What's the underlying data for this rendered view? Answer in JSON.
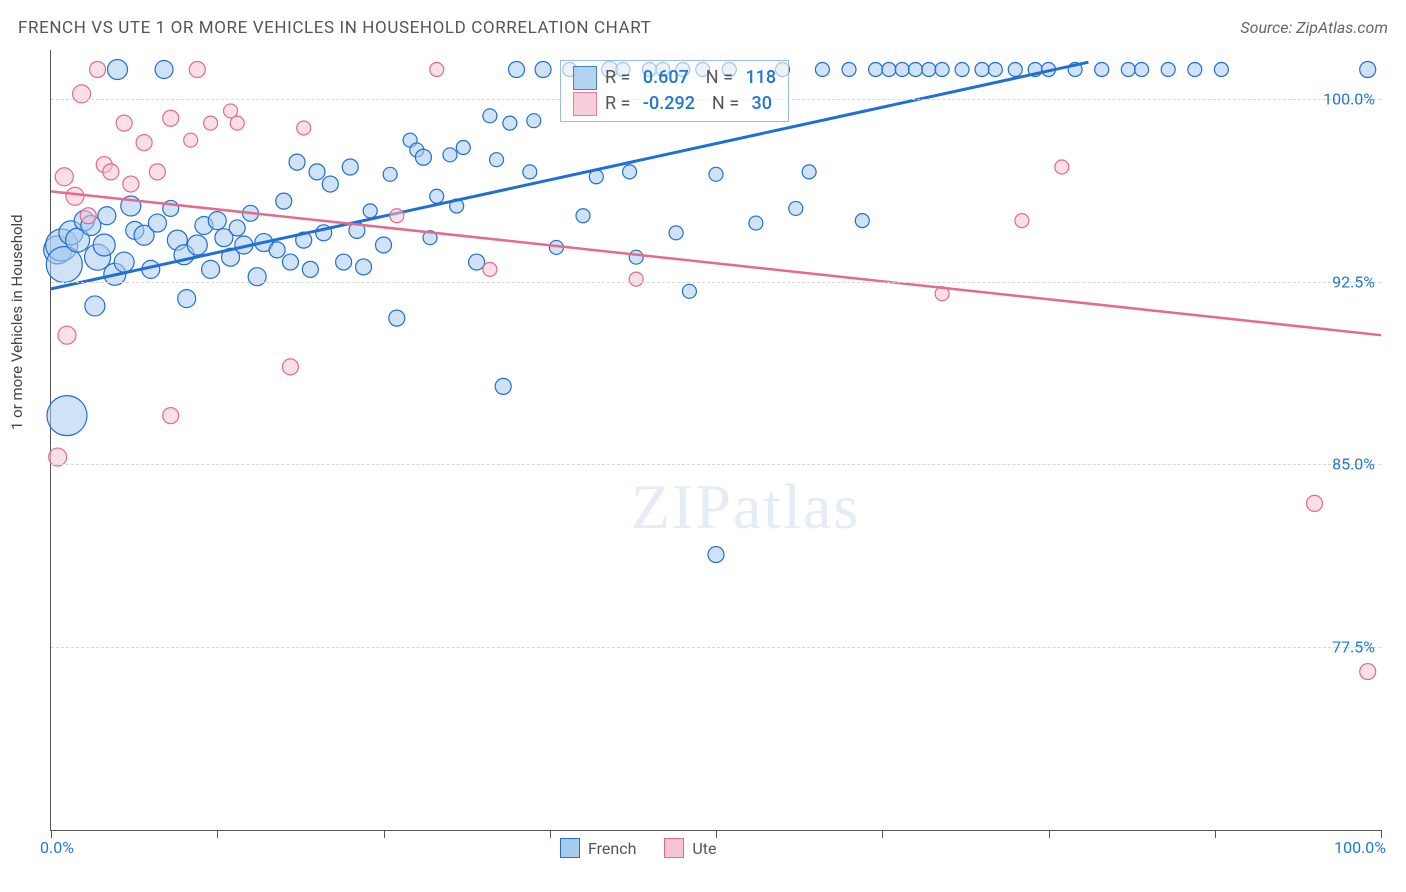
{
  "header": {
    "title": "FRENCH VS UTE 1 OR MORE VEHICLES IN HOUSEHOLD CORRELATION CHART",
    "source": "Source: ZipAtlas.com"
  },
  "chart": {
    "type": "scatter",
    "ylabel": "1 or more Vehicles in Household",
    "xlim": [
      0,
      100
    ],
    "ylim": [
      70,
      102
    ],
    "x_tick_positions": [
      0,
      12.5,
      25,
      37.5,
      50,
      62.5,
      75,
      87.5,
      100
    ],
    "x_start_label": "0.0%",
    "x_end_label": "100.0%",
    "y_ticks": [
      {
        "value": 100.0,
        "label": "100.0%"
      },
      {
        "value": 92.5,
        "label": "92.5%"
      },
      {
        "value": 85.0,
        "label": "85.0%"
      },
      {
        "value": 77.5,
        "label": "77.5%"
      }
    ],
    "background_color": "#ffffff",
    "grid_color": "#d8d8d8",
    "axis_color": "#555555",
    "tick_label_color": "#1f77d4",
    "watermark_text": "ZIPatlas",
    "series": [
      {
        "name": "French",
        "stroke": "#1f6fd4",
        "fill": "#a9cbee",
        "fill_opacity": 0.55,
        "marker_border_width": 1.2,
        "R": "0.607",
        "N": "118",
        "trend": {
          "x1": 0,
          "y1": 92.2,
          "x2": 78,
          "y2": 101.5,
          "color": "#1f6fd4",
          "width": 3
        },
        "points": [
          {
            "x": 0.5,
            "y": 93.8,
            "r": 14
          },
          {
            "x": 0.8,
            "y": 94.0,
            "r": 16
          },
          {
            "x": 1.0,
            "y": 93.2,
            "r": 18
          },
          {
            "x": 1.2,
            "y": 87.0,
            "r": 20
          },
          {
            "x": 1.5,
            "y": 94.5,
            "r": 12
          },
          {
            "x": 2.0,
            "y": 94.2,
            "r": 12
          },
          {
            "x": 2.5,
            "y": 95.0,
            "r": 10
          },
          {
            "x": 3.0,
            "y": 94.8,
            "r": 10
          },
          {
            "x": 3.3,
            "y": 91.5,
            "r": 10
          },
          {
            "x": 3.5,
            "y": 93.5,
            "r": 13
          },
          {
            "x": 4.0,
            "y": 94.0,
            "r": 11
          },
          {
            "x": 4.2,
            "y": 95.2,
            "r": 9
          },
          {
            "x": 4.8,
            "y": 92.8,
            "r": 11
          },
          {
            "x": 5.0,
            "y": 101.2,
            "r": 10
          },
          {
            "x": 5.5,
            "y": 93.3,
            "r": 10
          },
          {
            "x": 6.0,
            "y": 95.6,
            "r": 10
          },
          {
            "x": 6.3,
            "y": 94.6,
            "r": 9
          },
          {
            "x": 7.0,
            "y": 94.4,
            "r": 10
          },
          {
            "x": 7.5,
            "y": 93.0,
            "r": 9
          },
          {
            "x": 8.0,
            "y": 94.9,
            "r": 9
          },
          {
            "x": 8.5,
            "y": 101.2,
            "r": 9
          },
          {
            "x": 9.0,
            "y": 95.5,
            "r": 8
          },
          {
            "x": 9.5,
            "y": 94.2,
            "r": 10
          },
          {
            "x": 10.0,
            "y": 93.6,
            "r": 10
          },
          {
            "x": 10.2,
            "y": 91.8,
            "r": 9
          },
          {
            "x": 11.0,
            "y": 94.0,
            "r": 10
          },
          {
            "x": 11.5,
            "y": 94.8,
            "r": 9
          },
          {
            "x": 12.0,
            "y": 93.0,
            "r": 9
          },
          {
            "x": 12.5,
            "y": 95.0,
            "r": 9
          },
          {
            "x": 13.0,
            "y": 94.3,
            "r": 9
          },
          {
            "x": 13.5,
            "y": 93.5,
            "r": 9
          },
          {
            "x": 14.0,
            "y": 94.7,
            "r": 8
          },
          {
            "x": 14.5,
            "y": 94.0,
            "r": 9
          },
          {
            "x": 15.0,
            "y": 95.3,
            "r": 8
          },
          {
            "x": 15.5,
            "y": 92.7,
            "r": 9
          },
          {
            "x": 16.0,
            "y": 94.1,
            "r": 9
          },
          {
            "x": 17.0,
            "y": 93.8,
            "r": 8
          },
          {
            "x": 17.5,
            "y": 95.8,
            "r": 8
          },
          {
            "x": 18.0,
            "y": 93.3,
            "r": 8
          },
          {
            "x": 18.5,
            "y": 97.4,
            "r": 8
          },
          {
            "x": 19.0,
            "y": 94.2,
            "r": 8
          },
          {
            "x": 19.5,
            "y": 93.0,
            "r": 8
          },
          {
            "x": 20.0,
            "y": 97.0,
            "r": 8
          },
          {
            "x": 20.5,
            "y": 94.5,
            "r": 8
          },
          {
            "x": 21.0,
            "y": 96.5,
            "r": 8
          },
          {
            "x": 22.0,
            "y": 93.3,
            "r": 8
          },
          {
            "x": 22.5,
            "y": 97.2,
            "r": 8
          },
          {
            "x": 23.0,
            "y": 94.6,
            "r": 8
          },
          {
            "x": 23.5,
            "y": 93.1,
            "r": 8
          },
          {
            "x": 24.0,
            "y": 95.4,
            "r": 7
          },
          {
            "x": 25.0,
            "y": 94.0,
            "r": 8
          },
          {
            "x": 25.5,
            "y": 96.9,
            "r": 7
          },
          {
            "x": 26.0,
            "y": 91.0,
            "r": 8
          },
          {
            "x": 27.0,
            "y": 98.3,
            "r": 7
          },
          {
            "x": 27.5,
            "y": 97.9,
            "r": 7
          },
          {
            "x": 28.0,
            "y": 97.6,
            "r": 8
          },
          {
            "x": 28.5,
            "y": 94.3,
            "r": 7
          },
          {
            "x": 29.0,
            "y": 96.0,
            "r": 7
          },
          {
            "x": 30.0,
            "y": 97.7,
            "r": 7
          },
          {
            "x": 30.5,
            "y": 95.6,
            "r": 7
          },
          {
            "x": 31.0,
            "y": 98.0,
            "r": 7
          },
          {
            "x": 32.0,
            "y": 93.3,
            "r": 8
          },
          {
            "x": 33.0,
            "y": 99.3,
            "r": 7
          },
          {
            "x": 33.5,
            "y": 97.5,
            "r": 7
          },
          {
            "x": 34.0,
            "y": 88.2,
            "r": 8
          },
          {
            "x": 34.5,
            "y": 99.0,
            "r": 7
          },
          {
            "x": 35.0,
            "y": 101.2,
            "r": 8
          },
          {
            "x": 36.0,
            "y": 97.0,
            "r": 7
          },
          {
            "x": 36.3,
            "y": 99.1,
            "r": 7
          },
          {
            "x": 37.0,
            "y": 101.2,
            "r": 8
          },
          {
            "x": 38.0,
            "y": 93.9,
            "r": 7
          },
          {
            "x": 39.0,
            "y": 101.2,
            "r": 7
          },
          {
            "x": 40.0,
            "y": 95.2,
            "r": 7
          },
          {
            "x": 41.0,
            "y": 96.8,
            "r": 7
          },
          {
            "x": 42.0,
            "y": 101.2,
            "r": 8
          },
          {
            "x": 43.0,
            "y": 101.2,
            "r": 7
          },
          {
            "x": 43.5,
            "y": 97.0,
            "r": 7
          },
          {
            "x": 44.0,
            "y": 93.5,
            "r": 7
          },
          {
            "x": 45.0,
            "y": 101.2,
            "r": 7
          },
          {
            "x": 46.0,
            "y": 101.2,
            "r": 7
          },
          {
            "x": 47.0,
            "y": 94.5,
            "r": 7
          },
          {
            "x": 47.5,
            "y": 101.2,
            "r": 7
          },
          {
            "x": 48.0,
            "y": 92.1,
            "r": 7
          },
          {
            "x": 49.0,
            "y": 101.2,
            "r": 7
          },
          {
            "x": 50.0,
            "y": 96.9,
            "r": 7
          },
          {
            "x": 50.0,
            "y": 81.3,
            "r": 8
          },
          {
            "x": 51.0,
            "y": 101.2,
            "r": 7
          },
          {
            "x": 53.0,
            "y": 94.9,
            "r": 7
          },
          {
            "x": 55.0,
            "y": 101.2,
            "r": 7
          },
          {
            "x": 56.0,
            "y": 95.5,
            "r": 7
          },
          {
            "x": 57.0,
            "y": 97.0,
            "r": 7
          },
          {
            "x": 58.0,
            "y": 101.2,
            "r": 7
          },
          {
            "x": 60.0,
            "y": 101.2,
            "r": 7
          },
          {
            "x": 61.0,
            "y": 95.0,
            "r": 7
          },
          {
            "x": 62.0,
            "y": 101.2,
            "r": 7
          },
          {
            "x": 63.0,
            "y": 101.2,
            "r": 7
          },
          {
            "x": 64.0,
            "y": 101.2,
            "r": 7
          },
          {
            "x": 65.0,
            "y": 101.2,
            "r": 7
          },
          {
            "x": 66.0,
            "y": 101.2,
            "r": 7
          },
          {
            "x": 67.0,
            "y": 101.2,
            "r": 7
          },
          {
            "x": 68.5,
            "y": 101.2,
            "r": 7
          },
          {
            "x": 70.0,
            "y": 101.2,
            "r": 7
          },
          {
            "x": 71.0,
            "y": 101.2,
            "r": 7
          },
          {
            "x": 72.5,
            "y": 101.2,
            "r": 7
          },
          {
            "x": 74.0,
            "y": 101.2,
            "r": 7
          },
          {
            "x": 75.0,
            "y": 101.2,
            "r": 7
          },
          {
            "x": 77.0,
            "y": 101.2,
            "r": 7
          },
          {
            "x": 79.0,
            "y": 101.2,
            "r": 7
          },
          {
            "x": 81.0,
            "y": 101.2,
            "r": 7
          },
          {
            "x": 82.0,
            "y": 101.2,
            "r": 7
          },
          {
            "x": 84.0,
            "y": 101.2,
            "r": 7
          },
          {
            "x": 86.0,
            "y": 101.2,
            "r": 7
          },
          {
            "x": 88.0,
            "y": 101.2,
            "r": 7
          },
          {
            "x": 99.0,
            "y": 101.2,
            "r": 8
          }
        ]
      },
      {
        "name": "Ute",
        "stroke": "#e56a8b",
        "fill": "#f6c5d3",
        "fill_opacity": 0.55,
        "marker_border_width": 1.2,
        "R": "-0.292",
        "N": "30",
        "trend": {
          "x1": 0,
          "y1": 96.2,
          "x2": 100,
          "y2": 90.3,
          "color": "#e56a8b",
          "width": 2.5
        },
        "points": [
          {
            "x": 0.5,
            "y": 85.3,
            "r": 9
          },
          {
            "x": 1.0,
            "y": 96.8,
            "r": 9
          },
          {
            "x": 1.2,
            "y": 90.3,
            "r": 9
          },
          {
            "x": 1.8,
            "y": 96.0,
            "r": 9
          },
          {
            "x": 2.3,
            "y": 100.2,
            "r": 9
          },
          {
            "x": 2.8,
            "y": 95.2,
            "r": 8
          },
          {
            "x": 3.5,
            "y": 101.2,
            "r": 8
          },
          {
            "x": 4.0,
            "y": 97.3,
            "r": 8
          },
          {
            "x": 4.5,
            "y": 97.0,
            "r": 8
          },
          {
            "x": 5.5,
            "y": 99.0,
            "r": 8
          },
          {
            "x": 6.0,
            "y": 96.5,
            "r": 8
          },
          {
            "x": 7.0,
            "y": 98.2,
            "r": 8
          },
          {
            "x": 8.0,
            "y": 97.0,
            "r": 8
          },
          {
            "x": 9.0,
            "y": 99.2,
            "r": 8
          },
          {
            "x": 9.0,
            "y": 87.0,
            "r": 8
          },
          {
            "x": 10.5,
            "y": 98.3,
            "r": 7
          },
          {
            "x": 11.0,
            "y": 101.2,
            "r": 8
          },
          {
            "x": 12.0,
            "y": 99.0,
            "r": 7
          },
          {
            "x": 13.5,
            "y": 99.5,
            "r": 7
          },
          {
            "x": 14.0,
            "y": 99.0,
            "r": 7
          },
          {
            "x": 18.0,
            "y": 89.0,
            "r": 8
          },
          {
            "x": 19.0,
            "y": 98.8,
            "r": 7
          },
          {
            "x": 26.0,
            "y": 95.2,
            "r": 7
          },
          {
            "x": 29.0,
            "y": 101.2,
            "r": 7
          },
          {
            "x": 33.0,
            "y": 93.0,
            "r": 7
          },
          {
            "x": 44.0,
            "y": 92.6,
            "r": 7
          },
          {
            "x": 67.0,
            "y": 92.0,
            "r": 7
          },
          {
            "x": 73.0,
            "y": 95.0,
            "r": 7
          },
          {
            "x": 76.0,
            "y": 97.2,
            "r": 7
          },
          {
            "x": 95.0,
            "y": 83.4,
            "r": 8
          },
          {
            "x": 99.0,
            "y": 76.5,
            "r": 8
          }
        ]
      }
    ],
    "bottom_legend": [
      {
        "label": "French",
        "fill": "#a9cbee",
        "stroke": "#1f6fd4"
      },
      {
        "label": "Ute",
        "fill": "#f6c5d3",
        "stroke": "#e56a8b"
      }
    ]
  }
}
